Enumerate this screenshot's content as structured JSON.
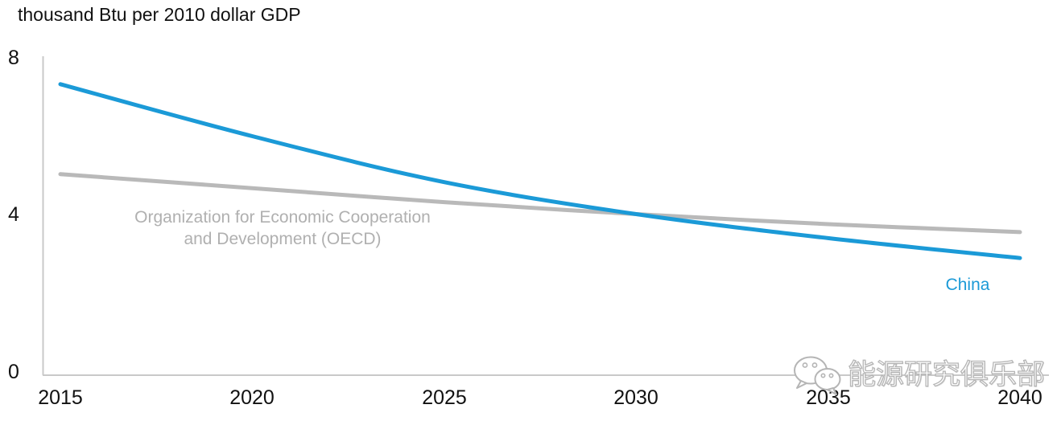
{
  "chart_data": {
    "type": "line",
    "title": "thousand Btu per 2010 dollar GDP",
    "xlabel": "",
    "ylabel": "thousand Btu per 2010 dollar GDP",
    "x": [
      2015,
      2020,
      2025,
      2030,
      2035,
      2040
    ],
    "x_tick_labels": [
      "2015",
      "2020",
      "2025",
      "2030",
      "2035",
      "2040"
    ],
    "y_ticks": [
      0,
      4,
      8
    ],
    "y_tick_labels": [
      "0",
      "4",
      "8"
    ],
    "xlim": [
      2015,
      2040
    ],
    "ylim": [
      0,
      8
    ],
    "grid": false,
    "legend_position": "inline-annotations",
    "series": [
      {
        "name": "China",
        "color": "#1b9ad7",
        "values": [
          7.3,
          6.0,
          4.85,
          4.05,
          3.45,
          2.95
        ]
      },
      {
        "name": "Organization for Economic Cooperation and Development (OECD)",
        "color": "#b9b9b9",
        "values": [
          5.05,
          4.7,
          4.35,
          4.05,
          3.8,
          3.6
        ]
      }
    ],
    "annotations": {
      "oecd_line1": "Organization for Economic Cooperation",
      "oecd_line2": "and Development (OECD)",
      "china": "China"
    },
    "axis_color": "#c9c9c9"
  },
  "watermark": {
    "text": "能源研究俱乐部",
    "icon": "wechat-chat-bubbles-icon"
  }
}
